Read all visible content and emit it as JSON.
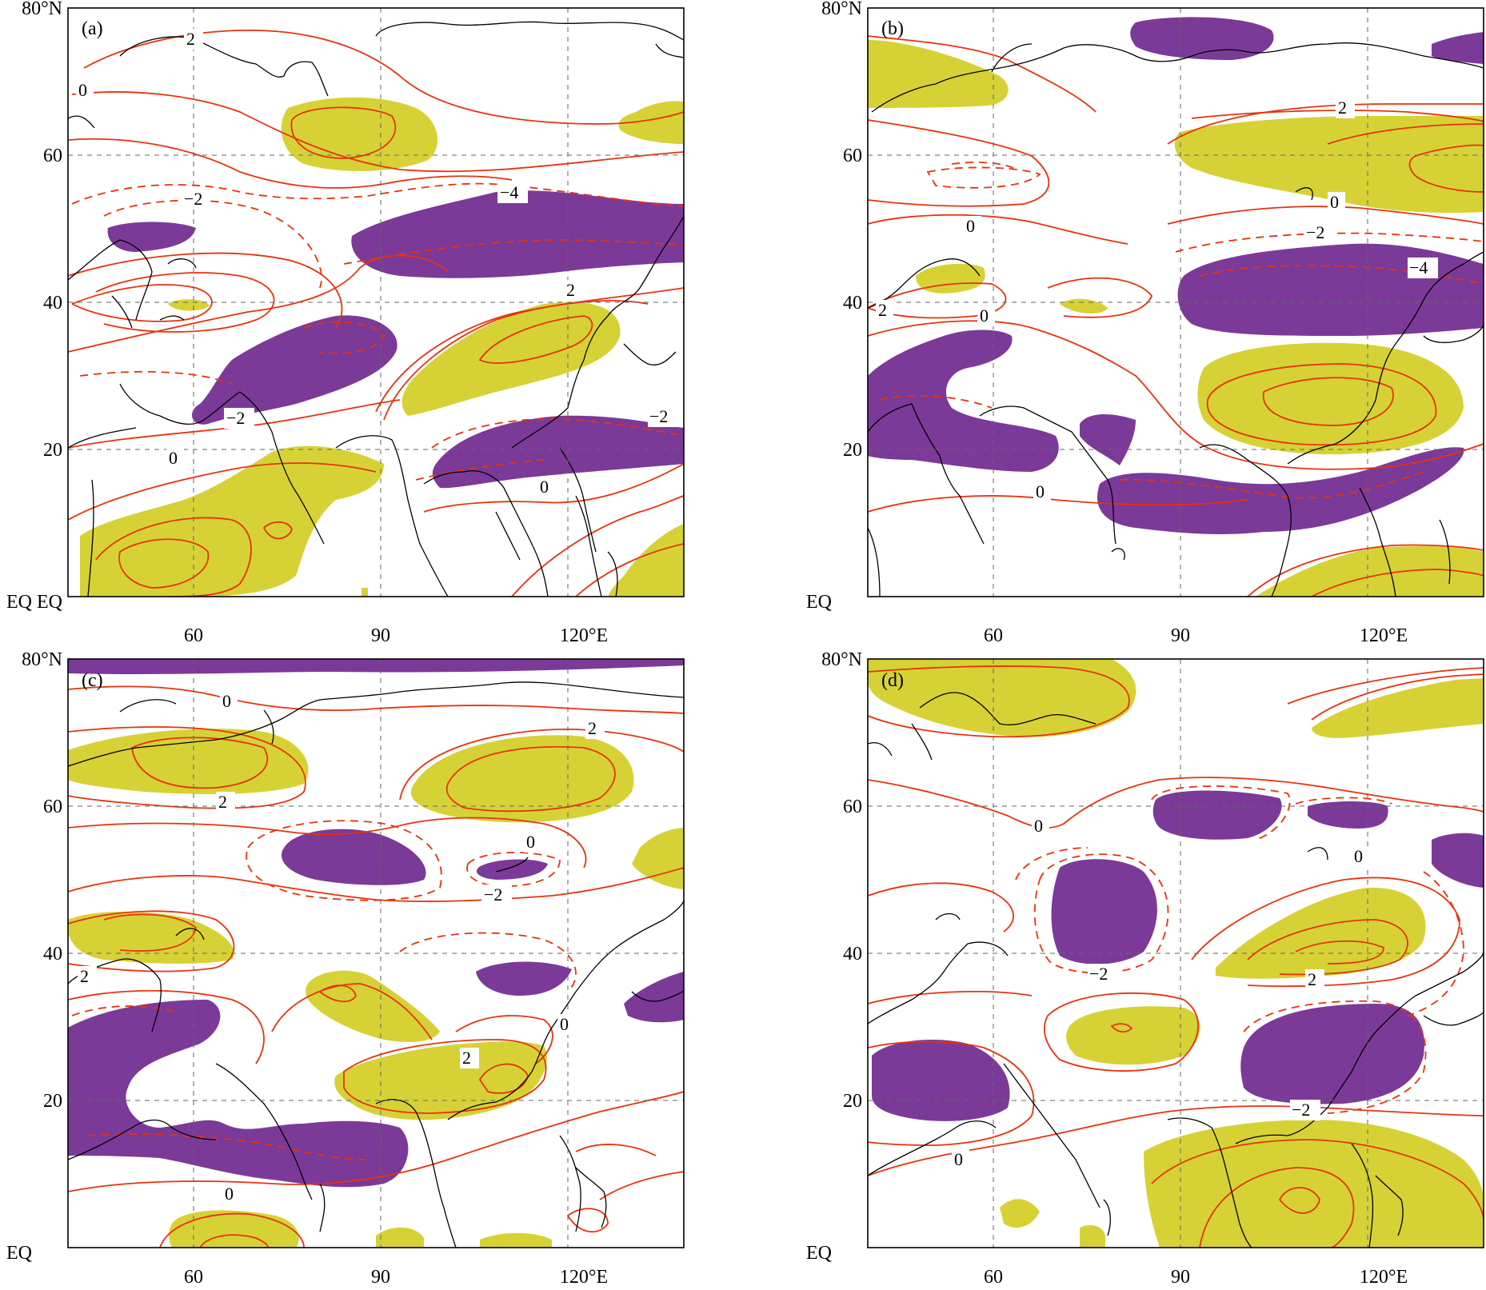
{
  "panels": [
    {
      "id": "a",
      "label": "(a)"
    },
    {
      "id": "b",
      "label": "(b)"
    },
    {
      "id": "c",
      "label": "(c)"
    },
    {
      "id": "d",
      "label": "(d)"
    }
  ],
  "axes": {
    "lat_ticks": [
      "EQ",
      "20",
      "40",
      "60",
      "80°N"
    ],
    "lon_ticks": [
      "60",
      "90",
      "120°E"
    ],
    "lon_range": [
      40,
      140
    ],
    "lat_range": [
      0,
      80
    ]
  },
  "colors": {
    "positive_shading": "#d6d235",
    "negative_shading": "#7b3a98",
    "contour": "#e8320f",
    "coastline": "#000000"
  },
  "contour_labels": {
    "a": [
      "2",
      "0",
      "−2",
      "−4",
      "2",
      "−2",
      "−2",
      "0",
      "0"
    ],
    "b": [
      "2",
      "−2",
      "0",
      "−4",
      "2",
      "0",
      "0"
    ],
    "c": [
      "0",
      "2",
      "2",
      "0",
      "−2",
      "2",
      "0",
      "2",
      "0"
    ],
    "d": [
      "0",
      "0",
      "−2",
      "2",
      "−2",
      "0"
    ]
  }
}
